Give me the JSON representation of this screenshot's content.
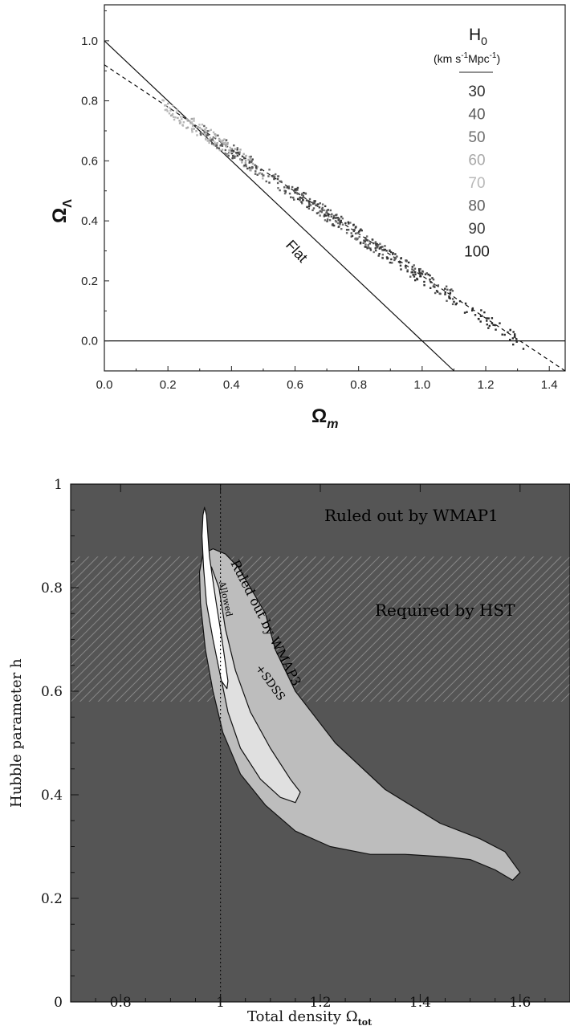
{
  "chart_data": [
    {
      "type": "scatter",
      "xlabel": "Ω",
      "xlabel_sub": "m",
      "ylabel": "Ω",
      "ylabel_sub": "Λ",
      "xlim": [
        0.0,
        1.45
      ],
      "ylim": [
        -0.1,
        1.12
      ],
      "xticks": [
        0.0,
        0.2,
        0.4,
        0.6,
        0.8,
        1.0,
        1.2,
        1.4
      ],
      "xtick_labels": [
        "0.0",
        "0.2",
        "0.4",
        "0.6",
        "0.8",
        "1.0",
        "1.2",
        "1.4"
      ],
      "yticks": [
        0.0,
        0.2,
        0.4,
        0.6,
        0.8,
        1.0
      ],
      "ytick_labels": [
        "0.0",
        "0.2",
        "0.4",
        "0.6",
        "0.8",
        "1.0"
      ],
      "grid": false,
      "legend": {
        "title": "H",
        "title_sub": "0",
        "units_prefix": "(km s",
        "units_sup1": "-1",
        "units_mid": "Mpc",
        "units_sup2": "-1",
        "units_suffix": ")",
        "placement": "top-right",
        "entries": [
          {
            "label": "30",
            "color": "#2e2e2e"
          },
          {
            "label": "40",
            "color": "#5a5a5a"
          },
          {
            "label": "50",
            "color": "#6e6e6e"
          },
          {
            "label": "60",
            "color": "#a8a8a8"
          },
          {
            "label": "70",
            "color": "#b8b8b8"
          },
          {
            "label": "80",
            "color": "#5e5e5e"
          },
          {
            "label": "90",
            "color": "#3a3a3a"
          },
          {
            "label": "100",
            "color": "#1e1e1e"
          }
        ]
      },
      "lines": [
        {
          "label": "Flat",
          "style": "solid",
          "x": [
            0.0,
            1.1
          ],
          "y": [
            1.0,
            -0.1
          ]
        },
        {
          "label": "",
          "style": "solid",
          "x": [
            0.0,
            1.45
          ],
          "y": [
            0.0,
            0.0
          ]
        },
        {
          "label": "",
          "style": "dashed",
          "x": [
            0.0,
            1.45
          ],
          "y": [
            0.92,
            -0.1
          ]
        }
      ],
      "scatter_clusters": [
        {
          "H0": "30",
          "x_range": [
            0.95,
            1.32
          ],
          "color": "#2a2a2a"
        },
        {
          "H0": "40",
          "x_range": [
            0.55,
            1.1
          ],
          "color": "#5a5a5a"
        },
        {
          "H0": "50",
          "x_range": [
            0.35,
            0.9
          ],
          "color": "#6e6e6e"
        },
        {
          "H0": "60",
          "x_range": [
            0.2,
            0.5
          ],
          "color": "#a8a8a8"
        },
        {
          "H0": "70",
          "x_range": [
            0.18,
            0.4
          ],
          "color": "#b8b8b8"
        },
        {
          "H0": "80",
          "x_range": [
            0.3,
            0.75
          ],
          "color": "#5e5e5e"
        },
        {
          "H0": "90",
          "x_range": [
            0.4,
            0.9
          ],
          "color": "#444444"
        },
        {
          "H0": "100",
          "x_range": [
            0.6,
            1.05
          ],
          "color": "#333333"
        }
      ]
    },
    {
      "type": "area",
      "xlabel": "Total density Ω",
      "xlabel_sub": "tot",
      "ylabel": "Hubble parameter h",
      "xlim": [
        0.7,
        1.7
      ],
      "ylim": [
        0.0,
        1.0
      ],
      "xticks": [
        0.8,
        1.0,
        1.2,
        1.4,
        1.6
      ],
      "xtick_labels": [
        "0.8",
        "1",
        "1.2",
        "1.4",
        "1.6"
      ],
      "yticks": [
        0.0,
        0.2,
        0.4,
        0.6,
        0.8,
        1.0
      ],
      "ytick_labels": [
        "0",
        "0.2",
        "0.4",
        "0.6",
        "0.8",
        "1"
      ],
      "background_color": "#555555",
      "hst_band": {
        "label": "Required by HST",
        "y_range": [
          0.58,
          0.86
        ]
      },
      "vertical_line": {
        "x": 1.0,
        "style": "dotted"
      },
      "regions": [
        {
          "label": "Ruled out by WMAP1",
          "color": "#555555",
          "boundary": null
        },
        {
          "label": "Ruled out by WMAP3",
          "color": "#bdbdbd",
          "boundary": [
            [
              0.965,
              0.865
            ],
            [
              0.985,
              0.875
            ],
            [
              1.01,
              0.865
            ],
            [
              1.035,
              0.84
            ],
            [
              1.06,
              0.8
            ],
            [
              1.09,
              0.75
            ],
            [
              1.11,
              0.68
            ],
            [
              1.15,
              0.6
            ],
            [
              1.23,
              0.5
            ],
            [
              1.33,
              0.41
            ],
            [
              1.44,
              0.345
            ],
            [
              1.52,
              0.315
            ],
            [
              1.57,
              0.29
            ],
            [
              1.6,
              0.25
            ],
            [
              1.585,
              0.235
            ],
            [
              1.55,
              0.255
            ],
            [
              1.5,
              0.275
            ],
            [
              1.45,
              0.28
            ],
            [
              1.37,
              0.285
            ],
            [
              1.3,
              0.285
            ],
            [
              1.22,
              0.3
            ],
            [
              1.15,
              0.33
            ],
            [
              1.09,
              0.38
            ],
            [
              1.04,
              0.44
            ],
            [
              1.005,
              0.52
            ],
            [
              0.985,
              0.6
            ],
            [
              0.97,
              0.68
            ],
            [
              0.96,
              0.77
            ],
            [
              0.958,
              0.83
            ]
          ]
        },
        {
          "label": "+SDSS",
          "color": "#e0e0e0",
          "boundary": [
            [
              0.982,
              0.84
            ],
            [
              0.997,
              0.8
            ],
            [
              1.01,
              0.72
            ],
            [
              1.03,
              0.64
            ],
            [
              1.06,
              0.56
            ],
            [
              1.1,
              0.49
            ],
            [
              1.14,
              0.43
            ],
            [
              1.16,
              0.405
            ],
            [
              1.15,
              0.385
            ],
            [
              1.12,
              0.395
            ],
            [
              1.08,
              0.43
            ],
            [
              1.04,
              0.49
            ],
            [
              1.015,
              0.56
            ],
            [
              0.998,
              0.64
            ],
            [
              0.987,
              0.72
            ],
            [
              0.98,
              0.8
            ]
          ]
        },
        {
          "label": "Allowed",
          "color": "#ffffff",
          "boundary": [
            [
              0.965,
              0.94
            ],
            [
              0.968,
              0.955
            ],
            [
              0.972,
              0.94
            ],
            [
              0.978,
              0.86
            ],
            [
              0.99,
              0.78
            ],
            [
              1.003,
              0.7
            ],
            [
              1.015,
              0.62
            ],
            [
              1.013,
              0.605
            ],
            [
              1.002,
              0.62
            ],
            [
              0.985,
              0.7
            ],
            [
              0.972,
              0.77
            ],
            [
              0.966,
              0.84
            ],
            [
              0.963,
              0.9
            ]
          ]
        }
      ]
    }
  ]
}
